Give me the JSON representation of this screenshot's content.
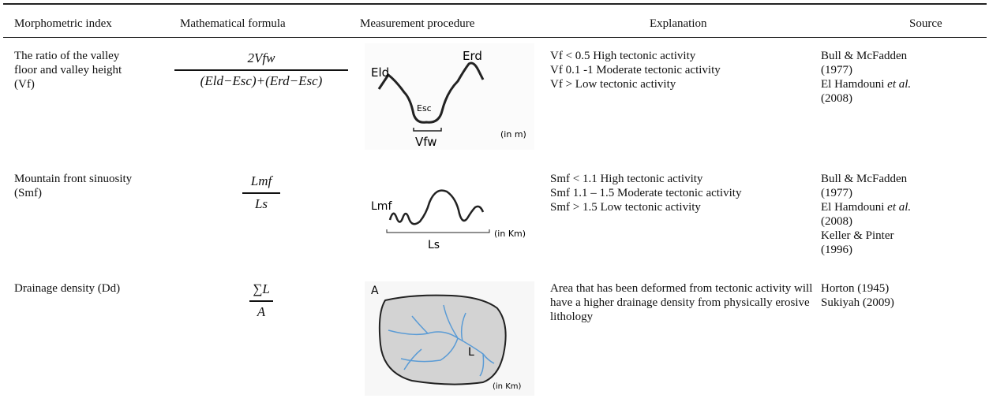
{
  "table": {
    "headers": [
      "Morphometric index",
      "Mathematical formula",
      "Measurement procedure",
      "Explanation",
      "Source"
    ],
    "rows": [
      {
        "index": "The ratio of the valley floor and valley height (Vf)",
        "formula": {
          "numerator": "2Vfw",
          "denominator": "(Eld−Esc)+(Erd−Esc)"
        },
        "procedure": {
          "labels": [
            "Eld",
            "Erd",
            "Esc",
            "Vfw"
          ],
          "unit": "(in m)"
        },
        "explanation": [
          "Vf < 0.5 High tectonic activity",
          "Vf 0.1 -1 Moderate tectonic activity",
          "Vf > Low tectonic activity"
        ],
        "sources": [
          {
            "author": "Bull & McFadden",
            "year": "(1977)"
          },
          {
            "author": "El Hamdouni",
            "etal": "et al.",
            "year": "(2008)"
          }
        ]
      },
      {
        "index": "Mountain front sinuosity (Smf)",
        "formula": {
          "numerator": "Lmf",
          "denominator": "Ls"
        },
        "procedure": {
          "labels": [
            "Lmf",
            "Ls"
          ],
          "unit": "(in Km)"
        },
        "explanation": [
          "Smf < 1.1 High tectonic activity",
          "Smf 1.1 – 1.5 Moderate tectonic activity",
          "Smf > 1.5 Low tectonic activity"
        ],
        "sources": [
          {
            "author": "Bull & McFadden",
            "year": "(1977)"
          },
          {
            "author": "El Hamdouni",
            "etal": "et al.",
            "year": "(2008)"
          },
          {
            "author": "Keller & Pinter",
            "year": "(1996)"
          }
        ]
      },
      {
        "index": "Drainage density (Dd)",
        "formula": {
          "numerator": "∑L",
          "denominator": "A"
        },
        "procedure": {
          "labels": [
            "A",
            "L"
          ],
          "unit": "(in Km)"
        },
        "explanation": [
          "Area that has been deformed from tectonic activity will have a higher drainage density from physically erosive lithology"
        ],
        "sources": [
          {
            "author": "Horton",
            "year": "(1945)"
          },
          {
            "author": "Sukiyah",
            "year": "(2009)"
          }
        ]
      }
    ]
  }
}
